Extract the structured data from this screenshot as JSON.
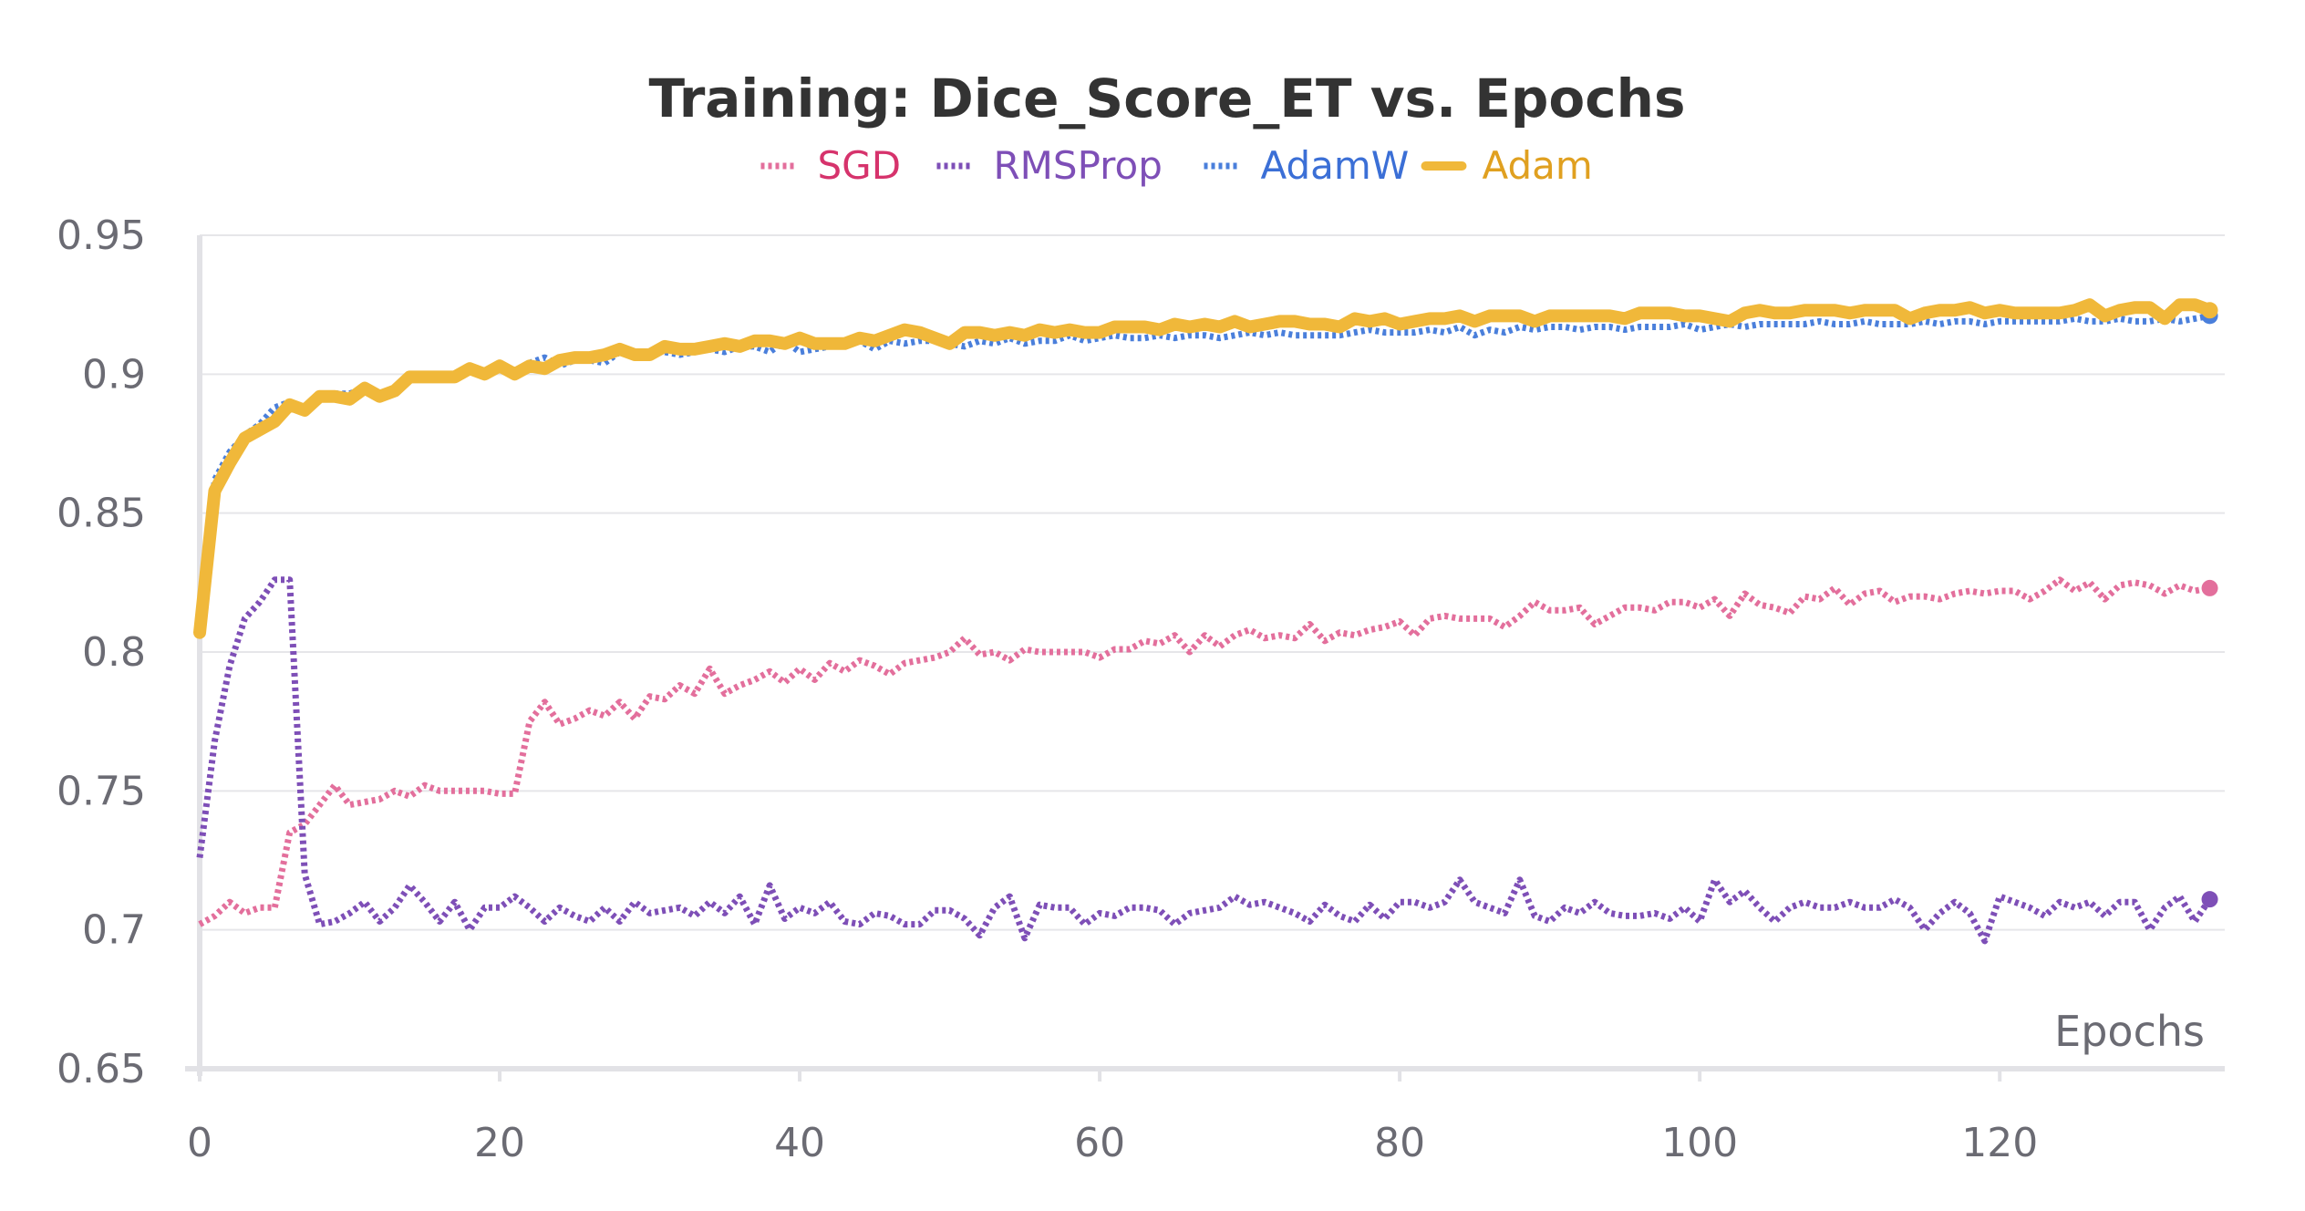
{
  "chart_data": {
    "type": "line",
    "title": "Training: Dice_Score_ET vs. Epochs",
    "xlabel": "Epochs",
    "ylabel": "",
    "xlim": [
      0,
      135
    ],
    "ylim": [
      0.65,
      0.95
    ],
    "x_ticks": [
      "0",
      "20",
      "40",
      "60",
      "80",
      "100",
      "120"
    ],
    "y_ticks": [
      "0.65",
      "0.7",
      "0.75",
      "0.8",
      "0.85",
      "0.9",
      "0.95"
    ],
    "grid": true,
    "legend_position": "top-center",
    "series": [
      {
        "name": "SGD",
        "color": "#e36f9c",
        "label_color": "#d6336c",
        "style": "dotted",
        "x": [
          0,
          1,
          2,
          3,
          4,
          5,
          6,
          7,
          8,
          9,
          10,
          11,
          12,
          13,
          14,
          15,
          16,
          17,
          18,
          19,
          20,
          21,
          22,
          23,
          24,
          25,
          26,
          27,
          28,
          29,
          30,
          31,
          32,
          33,
          34,
          35,
          36,
          37,
          38,
          39,
          40,
          41,
          42,
          43,
          44,
          45,
          46,
          47,
          48,
          49,
          50,
          51,
          52,
          53,
          54,
          55,
          56,
          57,
          58,
          59,
          60,
          61,
          62,
          63,
          64,
          65,
          66,
          67,
          68,
          69,
          70,
          71,
          72,
          73,
          74,
          75,
          76,
          77,
          78,
          79,
          80,
          81,
          82,
          83,
          84,
          85,
          86,
          87,
          88,
          89,
          90,
          91,
          92,
          93,
          94,
          95,
          96,
          97,
          98,
          99,
          100,
          101,
          102,
          103,
          104,
          105,
          106,
          107,
          108,
          109,
          110,
          111,
          112,
          113,
          114,
          115,
          116,
          117,
          118,
          119,
          120,
          121,
          122,
          123,
          124,
          125,
          126,
          127,
          128,
          129,
          130,
          131,
          132,
          133,
          134
        ],
        "y": [
          0.702,
          0.705,
          0.71,
          0.706,
          0.708,
          0.708,
          0.735,
          0.738,
          0.745,
          0.752,
          0.745,
          0.746,
          0.747,
          0.75,
          0.748,
          0.752,
          0.75,
          0.75,
          0.75,
          0.75,
          0.749,
          0.749,
          0.775,
          0.782,
          0.774,
          0.776,
          0.779,
          0.777,
          0.782,
          0.776,
          0.784,
          0.783,
          0.788,
          0.785,
          0.794,
          0.785,
          0.788,
          0.79,
          0.793,
          0.789,
          0.794,
          0.79,
          0.796,
          0.793,
          0.797,
          0.795,
          0.792,
          0.796,
          0.797,
          0.798,
          0.8,
          0.805,
          0.799,
          0.8,
          0.797,
          0.801,
          0.8,
          0.8,
          0.8,
          0.8,
          0.798,
          0.801,
          0.801,
          0.804,
          0.803,
          0.806,
          0.8,
          0.806,
          0.802,
          0.806,
          0.808,
          0.805,
          0.806,
          0.805,
          0.81,
          0.804,
          0.807,
          0.806,
          0.808,
          0.809,
          0.811,
          0.806,
          0.812,
          0.813,
          0.812,
          0.812,
          0.812,
          0.809,
          0.813,
          0.818,
          0.815,
          0.815,
          0.816,
          0.81,
          0.813,
          0.816,
          0.816,
          0.815,
          0.818,
          0.818,
          0.816,
          0.819,
          0.813,
          0.821,
          0.817,
          0.816,
          0.814,
          0.82,
          0.819,
          0.823,
          0.817,
          0.821,
          0.822,
          0.818,
          0.82,
          0.82,
          0.819,
          0.821,
          0.822,
          0.821,
          0.822,
          0.822,
          0.819,
          0.822,
          0.826,
          0.822,
          0.825,
          0.819,
          0.824,
          0.825,
          0.824,
          0.821,
          0.824,
          0.822,
          0.823
        ]
      },
      {
        "name": "RMSProp",
        "color": "#7e4fb7",
        "label_color": "#7e4fb7",
        "style": "dotted",
        "x": [
          0,
          1,
          2,
          3,
          4,
          5,
          6,
          7,
          8,
          9,
          10,
          11,
          12,
          13,
          14,
          15,
          16,
          17,
          18,
          19,
          20,
          21,
          22,
          23,
          24,
          25,
          26,
          27,
          28,
          29,
          30,
          31,
          32,
          33,
          34,
          35,
          36,
          37,
          38,
          39,
          40,
          41,
          42,
          43,
          44,
          45,
          46,
          47,
          48,
          49,
          50,
          51,
          52,
          53,
          54,
          55,
          56,
          57,
          58,
          59,
          60,
          61,
          62,
          63,
          64,
          65,
          66,
          67,
          68,
          69,
          70,
          71,
          72,
          73,
          74,
          75,
          76,
          77,
          78,
          79,
          80,
          81,
          82,
          83,
          84,
          85,
          86,
          87,
          88,
          89,
          90,
          91,
          92,
          93,
          94,
          95,
          96,
          97,
          98,
          99,
          100,
          101,
          102,
          103,
          104,
          105,
          106,
          107,
          108,
          109,
          110,
          111,
          112,
          113,
          114,
          115,
          116,
          117,
          118,
          119,
          120,
          121,
          122,
          123,
          124,
          125,
          126,
          127,
          128,
          129,
          130,
          131,
          132,
          133,
          134
        ],
        "y": [
          0.726,
          0.768,
          0.795,
          0.812,
          0.818,
          0.826,
          0.826,
          0.72,
          0.702,
          0.703,
          0.706,
          0.71,
          0.703,
          0.708,
          0.716,
          0.71,
          0.703,
          0.71,
          0.7,
          0.708,
          0.708,
          0.712,
          0.708,
          0.703,
          0.708,
          0.705,
          0.703,
          0.708,
          0.703,
          0.71,
          0.706,
          0.707,
          0.708,
          0.705,
          0.71,
          0.706,
          0.712,
          0.702,
          0.716,
          0.704,
          0.708,
          0.706,
          0.71,
          0.703,
          0.702,
          0.706,
          0.705,
          0.702,
          0.702,
          0.707,
          0.707,
          0.704,
          0.698,
          0.708,
          0.712,
          0.697,
          0.709,
          0.708,
          0.708,
          0.702,
          0.706,
          0.705,
          0.708,
          0.708,
          0.707,
          0.702,
          0.706,
          0.707,
          0.708,
          0.712,
          0.709,
          0.71,
          0.708,
          0.706,
          0.703,
          0.709,
          0.705,
          0.703,
          0.709,
          0.704,
          0.71,
          0.71,
          0.708,
          0.71,
          0.718,
          0.71,
          0.708,
          0.706,
          0.718,
          0.705,
          0.703,
          0.708,
          0.706,
          0.71,
          0.706,
          0.705,
          0.705,
          0.706,
          0.704,
          0.708,
          0.703,
          0.718,
          0.71,
          0.714,
          0.708,
          0.703,
          0.708,
          0.71,
          0.708,
          0.708,
          0.71,
          0.708,
          0.708,
          0.711,
          0.708,
          0.7,
          0.706,
          0.71,
          0.706,
          0.696,
          0.712,
          0.71,
          0.708,
          0.705,
          0.71,
          0.708,
          0.71,
          0.705,
          0.71,
          0.71,
          0.7,
          0.708,
          0.712,
          0.703,
          0.711
        ]
      },
      {
        "name": "AdamW",
        "color": "#4a7fdb",
        "label_color": "#3b6fd6",
        "style": "dotted",
        "x": [
          0,
          1,
          2,
          3,
          4,
          5,
          6,
          7,
          8,
          9,
          10,
          11,
          12,
          13,
          14,
          15,
          16,
          17,
          18,
          19,
          20,
          21,
          22,
          23,
          24,
          25,
          26,
          27,
          28,
          29,
          30,
          31,
          32,
          33,
          34,
          35,
          36,
          37,
          38,
          39,
          40,
          41,
          42,
          43,
          44,
          45,
          46,
          47,
          48,
          49,
          50,
          51,
          52,
          53,
          54,
          55,
          56,
          57,
          58,
          59,
          60,
          61,
          62,
          63,
          64,
          65,
          66,
          67,
          68,
          69,
          70,
          71,
          72,
          73,
          74,
          75,
          76,
          77,
          78,
          79,
          80,
          81,
          82,
          83,
          84,
          85,
          86,
          87,
          88,
          89,
          90,
          91,
          92,
          93,
          94,
          95,
          96,
          97,
          98,
          99,
          100,
          101,
          102,
          103,
          104,
          105,
          106,
          107,
          108,
          109,
          110,
          111,
          112,
          113,
          114,
          115,
          116,
          117,
          118,
          119,
          120,
          121,
          122,
          123,
          124,
          125,
          126,
          127,
          128,
          129,
          130,
          131,
          132,
          133,
          134
        ],
        "y": [
          0.81,
          0.862,
          0.872,
          0.878,
          0.882,
          0.888,
          0.89,
          0.888,
          0.892,
          0.893,
          0.893,
          0.895,
          0.893,
          0.895,
          0.9,
          0.899,
          0.898,
          0.9,
          0.902,
          0.9,
          0.903,
          0.901,
          0.904,
          0.906,
          0.903,
          0.905,
          0.905,
          0.904,
          0.908,
          0.906,
          0.908,
          0.908,
          0.907,
          0.908,
          0.909,
          0.908,
          0.91,
          0.91,
          0.908,
          0.912,
          0.908,
          0.909,
          0.91,
          0.91,
          0.912,
          0.909,
          0.912,
          0.911,
          0.912,
          0.912,
          0.911,
          0.91,
          0.912,
          0.911,
          0.913,
          0.911,
          0.912,
          0.912,
          0.914,
          0.912,
          0.913,
          0.914,
          0.913,
          0.913,
          0.914,
          0.913,
          0.914,
          0.914,
          0.913,
          0.914,
          0.915,
          0.914,
          0.915,
          0.914,
          0.914,
          0.914,
          0.914,
          0.915,
          0.916,
          0.915,
          0.915,
          0.915,
          0.916,
          0.915,
          0.917,
          0.914,
          0.916,
          0.915,
          0.917,
          0.916,
          0.917,
          0.917,
          0.916,
          0.917,
          0.917,
          0.916,
          0.917,
          0.917,
          0.917,
          0.918,
          0.916,
          0.917,
          0.918,
          0.917,
          0.918,
          0.918,
          0.918,
          0.918,
          0.919,
          0.918,
          0.918,
          0.919,
          0.918,
          0.918,
          0.918,
          0.919,
          0.918,
          0.919,
          0.919,
          0.918,
          0.919,
          0.919,
          0.919,
          0.919,
          0.919,
          0.92,
          0.919,
          0.919,
          0.92,
          0.919,
          0.919,
          0.92,
          0.919,
          0.92,
          0.921
        ]
      },
      {
        "name": "Adam",
        "color": "#f0b83a",
        "label_color": "#e0a020",
        "style": "solid",
        "x": [
          0,
          1,
          2,
          3,
          4,
          5,
          6,
          7,
          8,
          9,
          10,
          11,
          12,
          13,
          14,
          15,
          16,
          17,
          18,
          19,
          20,
          21,
          22,
          23,
          24,
          25,
          26,
          27,
          28,
          29,
          30,
          31,
          32,
          33,
          34,
          35,
          36,
          37,
          38,
          39,
          40,
          41,
          42,
          43,
          44,
          45,
          46,
          47,
          48,
          49,
          50,
          51,
          52,
          53,
          54,
          55,
          56,
          57,
          58,
          59,
          60,
          61,
          62,
          63,
          64,
          65,
          66,
          67,
          68,
          69,
          70,
          71,
          72,
          73,
          74,
          75,
          76,
          77,
          78,
          79,
          80,
          81,
          82,
          83,
          84,
          85,
          86,
          87,
          88,
          89,
          90,
          91,
          92,
          93,
          94,
          95,
          96,
          97,
          98,
          99,
          100,
          101,
          102,
          103,
          104,
          105,
          106,
          107,
          108,
          109,
          110,
          111,
          112,
          113,
          114,
          115,
          116,
          117,
          118,
          119,
          120,
          121,
          122,
          123,
          124,
          125,
          126,
          127,
          128,
          129,
          130,
          131,
          132,
          133,
          134
        ],
        "y": [
          0.807,
          0.858,
          0.868,
          0.877,
          0.88,
          0.883,
          0.889,
          0.887,
          0.892,
          0.892,
          0.891,
          0.895,
          0.892,
          0.894,
          0.899,
          0.899,
          0.899,
          0.899,
          0.902,
          0.9,
          0.903,
          0.9,
          0.903,
          0.902,
          0.905,
          0.906,
          0.906,
          0.907,
          0.909,
          0.907,
          0.907,
          0.91,
          0.909,
          0.909,
          0.91,
          0.911,
          0.91,
          0.912,
          0.912,
          0.911,
          0.913,
          0.911,
          0.911,
          0.911,
          0.913,
          0.912,
          0.914,
          0.916,
          0.915,
          0.913,
          0.911,
          0.915,
          0.915,
          0.914,
          0.915,
          0.914,
          0.916,
          0.915,
          0.916,
          0.915,
          0.915,
          0.917,
          0.917,
          0.917,
          0.916,
          0.918,
          0.917,
          0.918,
          0.917,
          0.919,
          0.917,
          0.918,
          0.919,
          0.919,
          0.918,
          0.918,
          0.917,
          0.92,
          0.919,
          0.92,
          0.918,
          0.919,
          0.92,
          0.92,
          0.921,
          0.919,
          0.921,
          0.921,
          0.921,
          0.919,
          0.921,
          0.921,
          0.921,
          0.921,
          0.921,
          0.92,
          0.922,
          0.922,
          0.922,
          0.921,
          0.921,
          0.92,
          0.919,
          0.922,
          0.923,
          0.922,
          0.922,
          0.923,
          0.923,
          0.923,
          0.922,
          0.923,
          0.923,
          0.923,
          0.92,
          0.922,
          0.923,
          0.923,
          0.924,
          0.922,
          0.923,
          0.922,
          0.922,
          0.922,
          0.922,
          0.923,
          0.925,
          0.921,
          0.923,
          0.924,
          0.924,
          0.92,
          0.925,
          0.925,
          0.923
        ]
      }
    ]
  }
}
